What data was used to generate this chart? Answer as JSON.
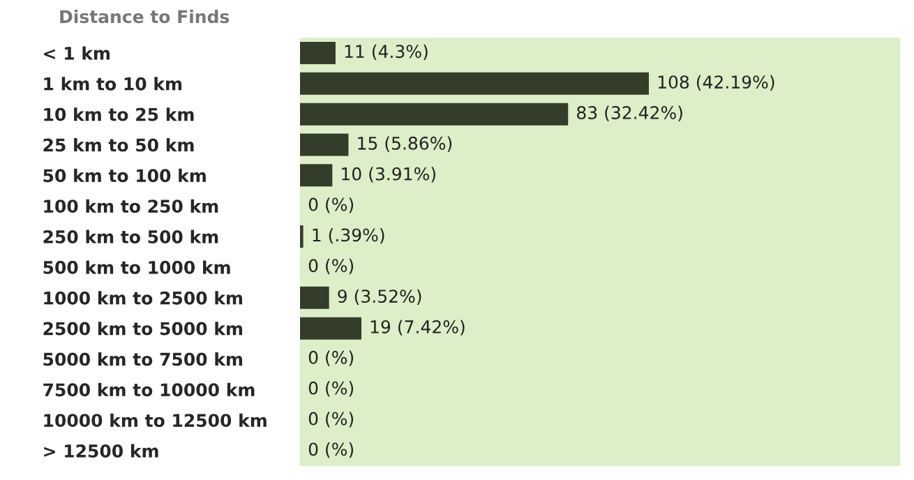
{
  "chart_data": {
    "type": "bar",
    "orientation": "horizontal",
    "title": "Distance to Finds",
    "categories": [
      "< 1 km",
      "1 km to 10 km",
      "10 km to 25 km",
      "25 km to 50 km",
      "50 km to 100 km",
      "100 km to 250 km",
      "250 km to 500 km",
      "500 km to 1000 km",
      "1000 km to 2500 km",
      "2500 km to 5000 km",
      "5000 km to 7500 km",
      "7500 km to 10000 km",
      "10000 km to 12500 km",
      "> 12500 km"
    ],
    "values": [
      11,
      108,
      83,
      15,
      10,
      0,
      1,
      0,
      9,
      19,
      0,
      0,
      0,
      0
    ],
    "value_labels": [
      "11 (4.3%)",
      "108 (42.19%)",
      "83 (32.42%)",
      "15 (5.86%)",
      "10 (3.91%)",
      "0 (%)",
      "1 (.39%)",
      "0 (%)",
      "9 (3.52%)",
      "19 (7.42%)",
      "0 (%)",
      "0 (%)",
      "0 (%)",
      "0 (%)"
    ],
    "color": "#333d2a"
  }
}
